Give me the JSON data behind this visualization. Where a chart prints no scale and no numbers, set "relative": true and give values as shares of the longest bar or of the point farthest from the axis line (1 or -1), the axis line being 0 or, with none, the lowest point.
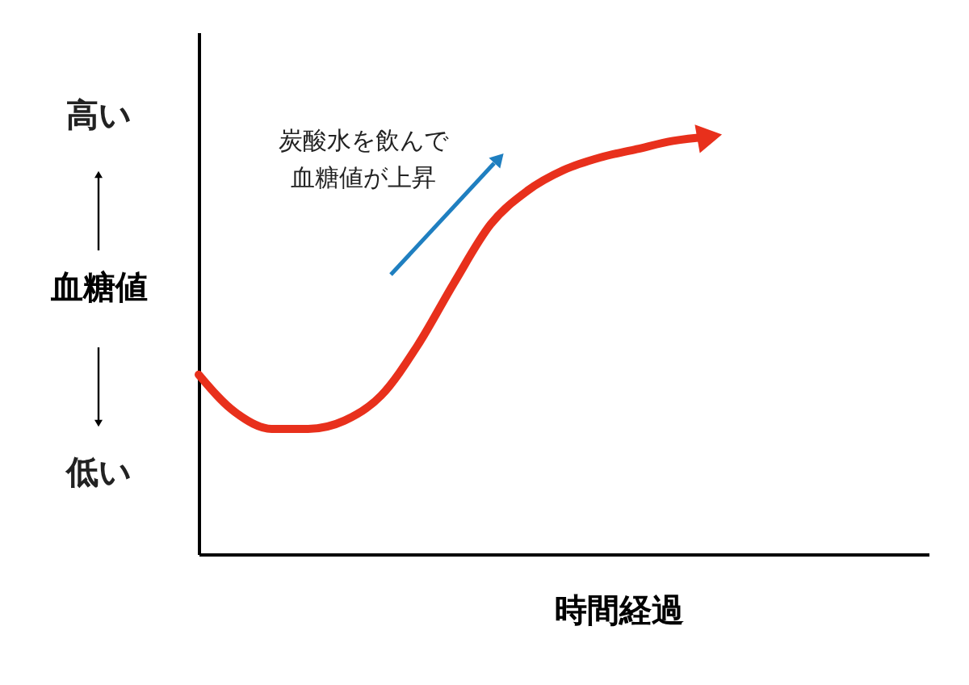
{
  "chart_data": {
    "type": "line",
    "relative": true,
    "xlabel": "時間経過",
    "ylabel": "血糖値",
    "categories": [
      null,
      null,
      null,
      null,
      null,
      null,
      null,
      null,
      null,
      null,
      null,
      null,
      null,
      null,
      null,
      null,
      null,
      null,
      null,
      null,
      null
    ],
    "series": [
      {
        "color": "#e8301c",
        "values": [
          0.43,
          0.34,
          0.3,
          0.3,
          0.32,
          0.38,
          0.5,
          0.65,
          0.79,
          0.87,
          0.92,
          0.95,
          0.97,
          0.99,
          1.0,
          null,
          null,
          null,
          null,
          null,
          null
        ]
      }
    ],
    "annotations": [
      "炭酸水を飲んで",
      "血糖値が上昇",
      "高い",
      "低い"
    ],
    "grid": false,
    "marker": "none",
    "line_style": "solid"
  }
}
